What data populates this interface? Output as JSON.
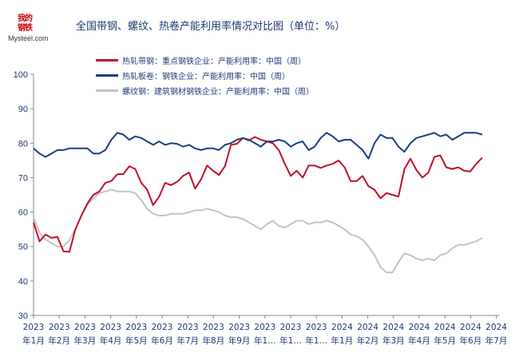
{
  "logo": {
    "text_cn": "我的钢铁",
    "text_en": "Mysteel.com"
  },
  "chart_data": {
    "type": "line",
    "title": "全国带钢、螺纹、热卷产能利用率情况对比图（单位：%）",
    "ylim": [
      30,
      100
    ],
    "yticks": [
      30,
      40,
      50,
      60,
      70,
      80,
      90,
      100
    ],
    "xlim": [
      "2023-01",
      "2024-07"
    ],
    "xticks": [
      [
        "2023",
        "年1月"
      ],
      [
        "2023",
        "年2月"
      ],
      [
        "2023",
        "年3月"
      ],
      [
        "2023",
        "年4月"
      ],
      [
        "2023",
        "年5月"
      ],
      [
        "2023",
        "年6月"
      ],
      [
        "2023",
        "年7月"
      ],
      [
        "2023",
        "年8月"
      ],
      [
        "2023",
        "年9月"
      ],
      [
        "2023",
        "年1…"
      ],
      [
        "2023",
        "年1…"
      ],
      [
        "2023",
        "年1…"
      ],
      [
        "2024",
        "年1月"
      ],
      [
        "2024",
        "年2月"
      ],
      [
        "2024",
        "年3月"
      ],
      [
        "2024",
        "年4月"
      ],
      [
        "2024",
        "年5月"
      ],
      [
        "2024",
        "年6月"
      ],
      [
        "2024",
        "年7月"
      ]
    ],
    "grid": false,
    "legend_placement": "top-left",
    "series": [
      {
        "name": "热轧带钢：重点钢铁企业：产能利用率：中国（周）",
        "color": "#c0102a",
        "values": [
          57,
          51.5,
          53.5,
          52.5,
          52.8,
          48.6,
          48.5,
          55,
          59,
          62.5,
          65,
          66,
          68.5,
          69,
          71,
          71,
          73.3,
          72.5,
          68.5,
          66.5,
          62,
          64.5,
          68.5,
          67.8,
          68.8,
          70.5,
          71.5,
          66.8,
          69.5,
          73.5,
          72,
          70.8,
          73.3,
          79.5,
          79.8,
          81.5,
          80.8,
          81.8,
          81,
          80.5,
          80,
          78,
          74,
          70.5,
          72,
          70,
          73.5,
          73.5,
          72.8,
          73.5,
          74,
          75,
          73,
          69,
          69,
          70.5,
          67.5,
          66.5,
          64,
          65.5,
          65,
          64.5,
          72.5,
          75.5,
          72.2,
          70,
          71.5,
          76,
          76.5,
          73,
          72.5,
          73,
          72,
          71.8,
          74,
          75.8
        ]
      },
      {
        "name": "热轧板卷：钢铁企业：产能利用率：中国（周）",
        "color": "#1a3f7e",
        "values": [
          78.5,
          77,
          76,
          77,
          78,
          78,
          78.5,
          78.5,
          78.5,
          78.5,
          77,
          77,
          78,
          81,
          83,
          82.5,
          81,
          82,
          81.5,
          80.5,
          79.5,
          80.5,
          79.5,
          80,
          79.8,
          79,
          79.5,
          78.5,
          78,
          78.5,
          78.5,
          78,
          79.5,
          80,
          81,
          81.5,
          81,
          80,
          79,
          80.5,
          80.5,
          81,
          80.5,
          79,
          80,
          80.5,
          78,
          79,
          81.5,
          83,
          82,
          80.5,
          81,
          81,
          79.5,
          78,
          75.5,
          80,
          82.5,
          81.5,
          81.5,
          79,
          77.5,
          80,
          81.5,
          82,
          82.5,
          83,
          82,
          82.5,
          81,
          82,
          83,
          83,
          83,
          82.5
        ]
      },
      {
        "name": "螺纹钢：建筑钢材钢铁企业：产能利用率：中国（周）",
        "color": "#c4c4c4",
        "values": [
          58.5,
          54,
          52,
          51,
          50,
          50,
          52,
          55,
          59,
          62,
          64,
          65.5,
          66,
          66.5,
          66,
          66,
          66,
          65.5,
          63.5,
          61,
          59.5,
          59,
          59,
          59.5,
          59.5,
          59.5,
          60,
          60.5,
          60.5,
          61,
          60.5,
          60,
          59,
          58.5,
          58.5,
          58,
          57,
          56,
          55,
          56.5,
          57.5,
          56,
          55.5,
          56.5,
          57.5,
          57.5,
          56.5,
          57,
          57,
          57.5,
          57,
          56,
          55,
          53.5,
          53,
          52,
          50,
          47.5,
          44,
          42.5,
          42.5,
          45.5,
          48,
          47.5,
          46.5,
          46,
          46.5,
          46,
          47.5,
          48,
          49.5,
          50.5,
          50.5,
          51,
          51.5,
          52.5
        ]
      }
    ]
  }
}
